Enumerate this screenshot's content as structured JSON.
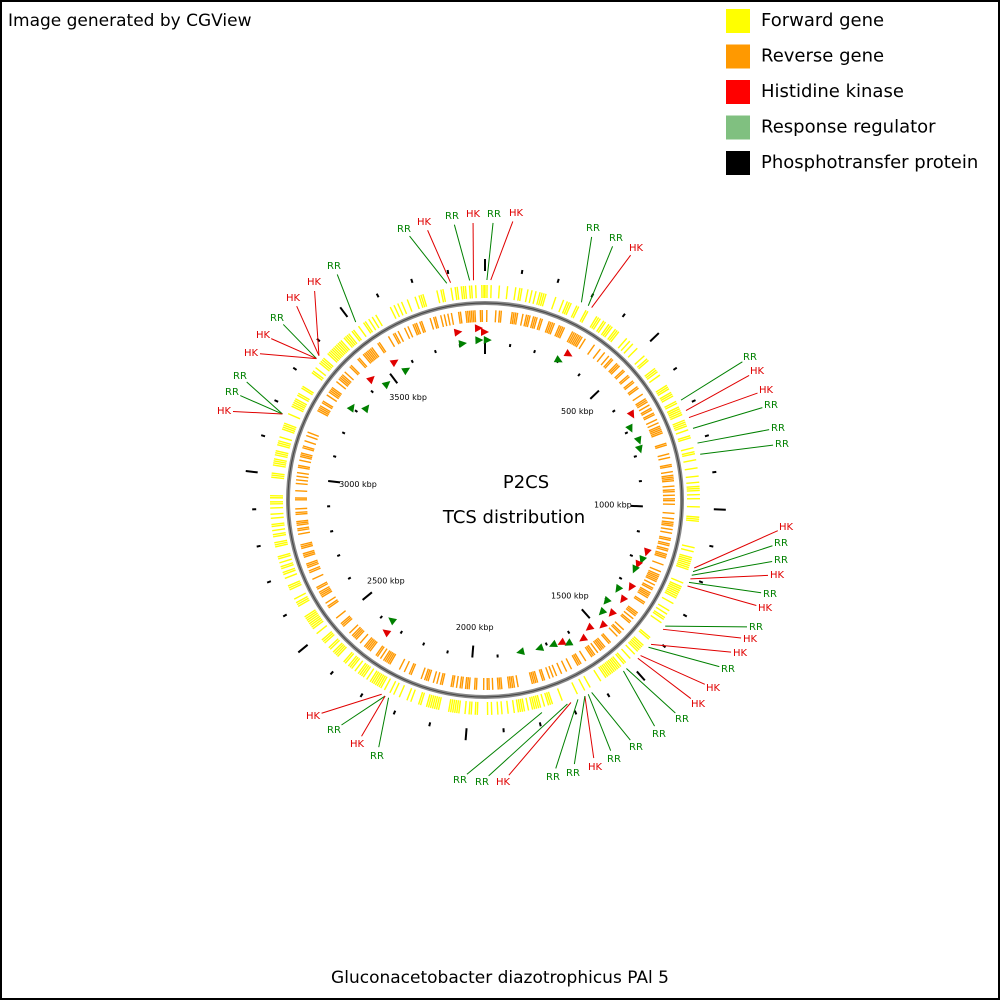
{
  "header": {
    "credit": "Image generated by CGView"
  },
  "legend": [
    {
      "label": "Forward gene",
      "color": "#ffff00"
    },
    {
      "label": "Reverse gene",
      "color": "#ff9900"
    },
    {
      "label": "Histidine kinase",
      "color": "#ff0000"
    },
    {
      "label": "Response regulator",
      "color": "#80c080"
    },
    {
      "label": "Phosphotransfer protein",
      "color": "#000000"
    }
  ],
  "map": {
    "title": "P2CS",
    "subtitle": "TCS distribution",
    "scale_labels": [
      "500 kbp",
      "1000 kbp",
      "1500 kbp",
      "2000 kbp",
      "2500 kbp",
      "3000 kbp",
      "3500 kbp"
    ],
    "callouts": [
      {
        "label": "RR",
        "color": "#008000"
      },
      {
        "label": "HK",
        "color": "#e00000"
      },
      {
        "label": "RR",
        "color": "#008000"
      },
      {
        "label": "HK",
        "color": "#e00000"
      },
      {
        "label": "RR",
        "color": "#008000"
      },
      {
        "label": "HK",
        "color": "#e00000"
      },
      {
        "label": "RR",
        "color": "#008000"
      },
      {
        "label": "RR",
        "color": "#008000"
      },
      {
        "label": "HK",
        "color": "#e00000"
      },
      {
        "label": "RR",
        "color": "#008000"
      },
      {
        "label": "HK",
        "color": "#e00000"
      },
      {
        "label": "HK",
        "color": "#e00000"
      },
      {
        "label": "RR",
        "color": "#008000"
      },
      {
        "label": "RR",
        "color": "#008000"
      },
      {
        "label": "RR",
        "color": "#008000"
      },
      {
        "label": "HK",
        "color": "#e00000"
      },
      {
        "label": "RR",
        "color": "#008000"
      },
      {
        "label": "RR",
        "color": "#008000"
      },
      {
        "label": "HK",
        "color": "#e00000"
      },
      {
        "label": "RR",
        "color": "#008000"
      },
      {
        "label": "HK",
        "color": "#e00000"
      },
      {
        "label": "RR",
        "color": "#008000"
      },
      {
        "label": "HK",
        "color": "#e00000"
      },
      {
        "label": "HK",
        "color": "#e00000"
      },
      {
        "label": "RR",
        "color": "#008000"
      },
      {
        "label": "HK",
        "color": "#e00000"
      },
      {
        "label": "HK",
        "color": "#e00000"
      },
      {
        "label": "RR",
        "color": "#008000"
      },
      {
        "label": "RR",
        "color": "#008000"
      },
      {
        "label": "RR",
        "color": "#008000"
      },
      {
        "label": "RR",
        "color": "#008000"
      },
      {
        "label": "HK",
        "color": "#e00000"
      },
      {
        "label": "RR",
        "color": "#008000"
      },
      {
        "label": "RR",
        "color": "#008000"
      },
      {
        "label": "HK",
        "color": "#e00000"
      },
      {
        "label": "RR",
        "color": "#008000"
      },
      {
        "label": "RR",
        "color": "#008000"
      },
      {
        "label": "HK",
        "color": "#e00000"
      },
      {
        "label": "RR",
        "color": "#008000"
      },
      {
        "label": "HK",
        "color": "#e00000"
      },
      {
        "label": "RR",
        "color": "#008000"
      },
      {
        "label": "RR",
        "color": "#008000"
      },
      {
        "label": "HK",
        "color": "#e00000"
      },
      {
        "label": "HK",
        "color": "#e00000"
      },
      {
        "label": "RR",
        "color": "#008000"
      },
      {
        "label": "HK",
        "color": "#e00000"
      },
      {
        "label": "HK",
        "color": "#e00000"
      },
      {
        "label": "RR",
        "color": "#008000"
      },
      {
        "label": "RR",
        "color": "#008000"
      },
      {
        "label": "HK",
        "color": "#e00000"
      }
    ]
  },
  "footer": {
    "organism": "Gluconacetobacter diazotrophicus PAl 5"
  }
}
